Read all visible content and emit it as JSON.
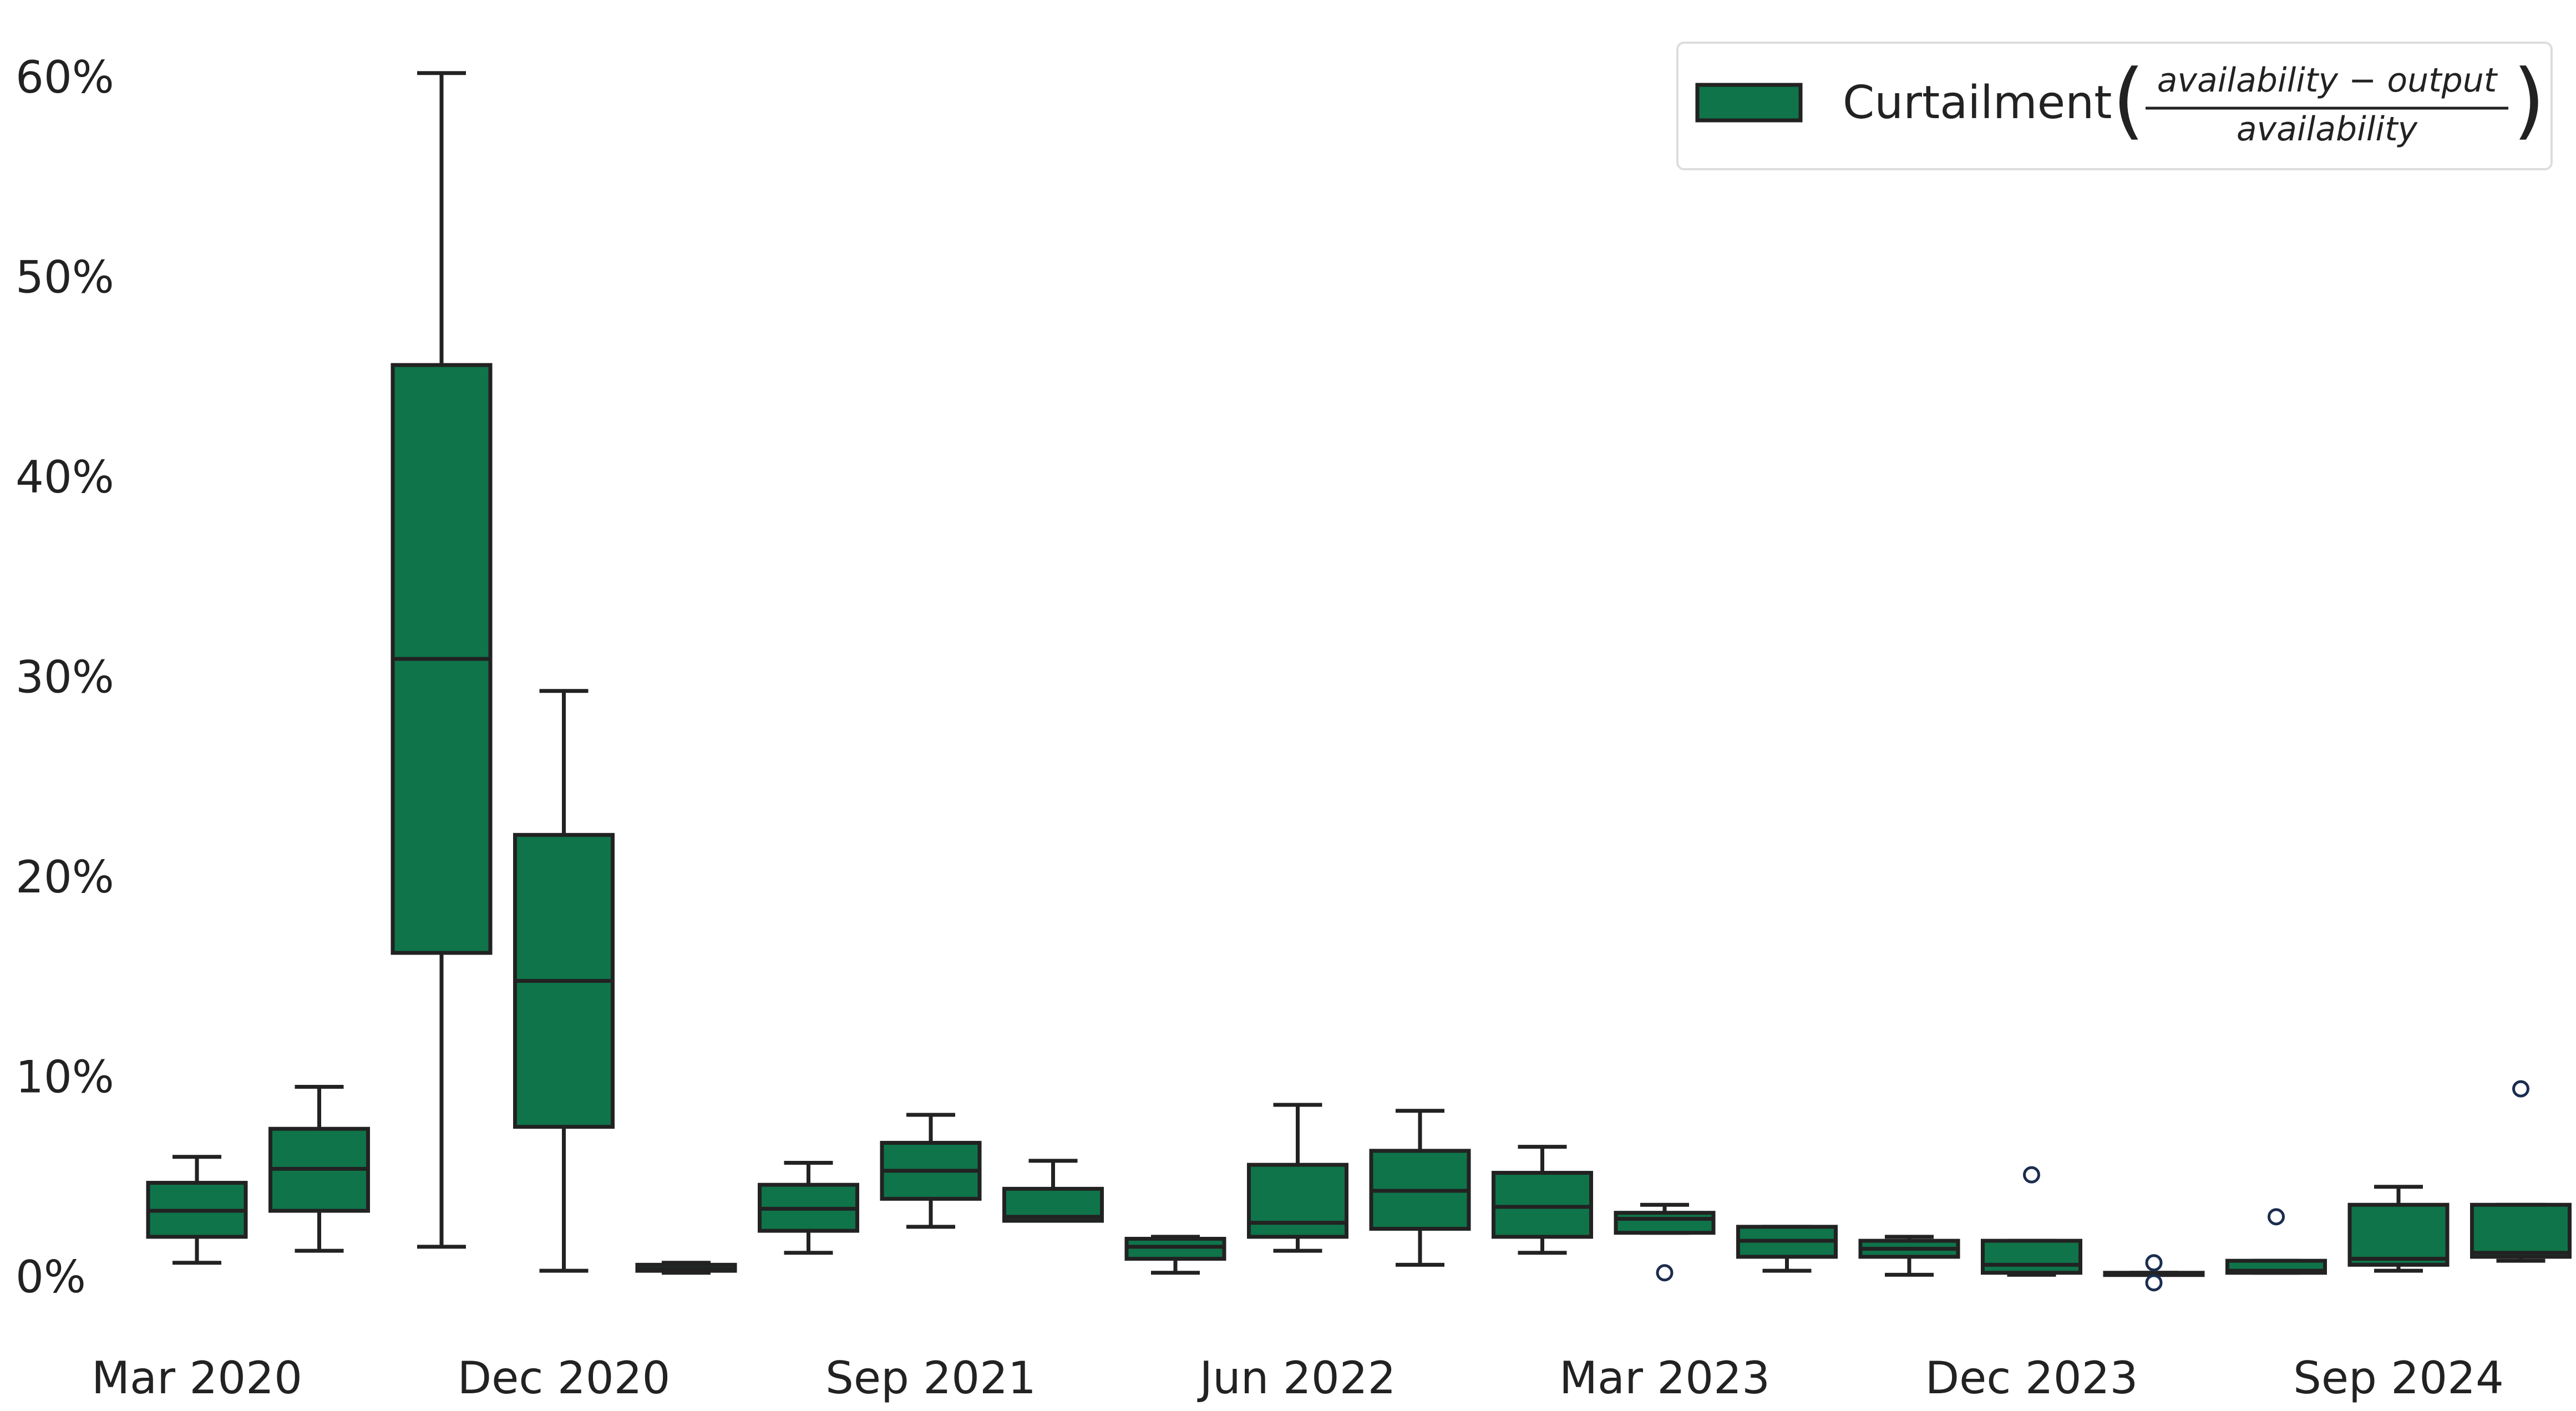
{
  "chart_data": {
    "type": "box",
    "title": "",
    "xlabel": "",
    "ylabel": "",
    "ylim": [
      0,
      0.6
    ],
    "y_format": "percent",
    "grid": false,
    "legend_position": "top-right",
    "colors": {
      "box_fill": "#0f744a",
      "box_edge": "#222222",
      "outlier_edge": "#1b2d4f"
    },
    "y_ticks": [
      {
        "value": 0.0,
        "label": "0%"
      },
      {
        "value": 0.1,
        "label": "10%"
      },
      {
        "value": 0.2,
        "label": "20%"
      },
      {
        "value": 0.3,
        "label": "30%"
      },
      {
        "value": 0.4,
        "label": "40%"
      },
      {
        "value": 0.5,
        "label": "50%"
      },
      {
        "value": 0.6,
        "label": "60%"
      }
    ],
    "x_ticks": [
      {
        "index": 0,
        "label": "Mar 2020"
      },
      {
        "index": 3,
        "label": "Dec 2020"
      },
      {
        "index": 6,
        "label": "Sep 2021"
      },
      {
        "index": 9,
        "label": "Jun 2022"
      },
      {
        "index": 12,
        "label": "Mar 2023"
      },
      {
        "index": 15,
        "label": "Dec 2023"
      },
      {
        "index": 18,
        "label": "Sep 2024"
      }
    ],
    "legend": {
      "label": "Curtailment",
      "numerator": "availability − output",
      "denominator": "availability"
    },
    "series": [
      {
        "boxes": [
          {
            "whislo": 0.007,
            "q1": 0.02,
            "med": 0.033,
            "q3": 0.047,
            "whishi": 0.06,
            "fliers": []
          },
          {
            "whislo": 0.013,
            "q1": 0.033,
            "med": 0.054,
            "q3": 0.074,
            "whishi": 0.095,
            "fliers": []
          },
          {
            "whislo": 0.015,
            "q1": 0.162,
            "med": 0.309,
            "q3": 0.456,
            "whishi": 0.602,
            "fliers": []
          },
          {
            "whislo": 0.003,
            "q1": 0.075,
            "med": 0.148,
            "q3": 0.221,
            "whishi": 0.293,
            "fliers": []
          },
          {
            "whislo": 0.002,
            "q1": 0.003,
            "med": 0.004,
            "q3": 0.006,
            "whishi": 0.007,
            "fliers": []
          },
          {
            "whislo": 0.012,
            "q1": 0.023,
            "med": 0.034,
            "q3": 0.046,
            "whishi": 0.057,
            "fliers": []
          },
          {
            "whislo": 0.025,
            "q1": 0.039,
            "med": 0.053,
            "q3": 0.067,
            "whishi": 0.081,
            "fliers": []
          },
          {
            "whislo": 0.028,
            "q1": 0.028,
            "med": 0.03,
            "q3": 0.044,
            "whishi": 0.058,
            "fliers": []
          },
          {
            "whislo": 0.002,
            "q1": 0.009,
            "med": 0.015,
            "q3": 0.019,
            "whishi": 0.02,
            "fliers": []
          },
          {
            "whislo": 0.013,
            "q1": 0.02,
            "med": 0.027,
            "q3": 0.056,
            "whishi": 0.086,
            "fliers": []
          },
          {
            "whislo": 0.006,
            "q1": 0.024,
            "med": 0.043,
            "q3": 0.063,
            "whishi": 0.083,
            "fliers": []
          },
          {
            "whislo": 0.012,
            "q1": 0.02,
            "med": 0.035,
            "q3": 0.052,
            "whishi": 0.065,
            "fliers": []
          },
          {
            "whislo": 0.022,
            "q1": 0.022,
            "med": 0.029,
            "q3": 0.032,
            "whishi": 0.036,
            "fliers": [
              0.002
            ]
          },
          {
            "whislo": 0.003,
            "q1": 0.01,
            "med": 0.018,
            "q3": 0.025,
            "whishi": 0.025,
            "fliers": []
          },
          {
            "whislo": 0.001,
            "q1": 0.01,
            "med": 0.014,
            "q3": 0.018,
            "whishi": 0.02,
            "fliers": []
          },
          {
            "whislo": 0.001,
            "q1": 0.002,
            "med": 0.006,
            "q3": 0.018,
            "whishi": 0.018,
            "fliers": [
              0.051
            ]
          },
          {
            "whislo": 0.001,
            "q1": 0.001,
            "med": 0.001,
            "q3": 0.002,
            "whishi": 0.002,
            "fliers": [
              0.007,
              -0.003
            ]
          },
          {
            "whislo": 0.002,
            "q1": 0.002,
            "med": 0.003,
            "q3": 0.008,
            "whishi": 0.008,
            "fliers": [
              0.03
            ]
          },
          {
            "whislo": 0.003,
            "q1": 0.006,
            "med": 0.009,
            "q3": 0.036,
            "whishi": 0.045,
            "fliers": []
          },
          {
            "whislo": 0.008,
            "q1": 0.01,
            "med": 0.012,
            "q3": 0.036,
            "whishi": 0.036,
            "fliers": [
              0.094
            ]
          }
        ]
      }
    ]
  }
}
